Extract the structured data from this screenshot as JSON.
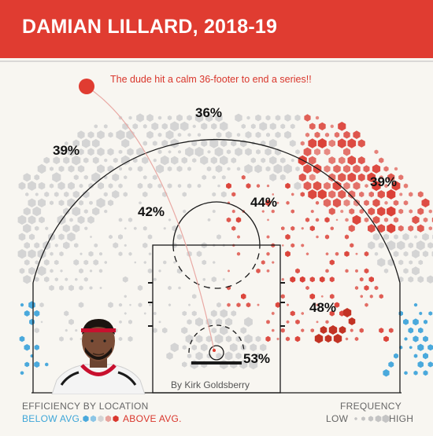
{
  "header": {
    "title": "DAMIAN LILLARD, 2018-19"
  },
  "annotation": "The dude hit a calm 36-footer to end a series!!",
  "credit": "By Kirk Goldsberry",
  "colors": {
    "header": "#e03c31",
    "below_avg": "#4aa9dc",
    "avg": "#d4d4d4",
    "above_avg": "#d9362c"
  },
  "legend": {
    "efficiency_title": "EFFICIENCY BY LOCATION",
    "below_label": "BELOW AVG.",
    "above_label": "ABOVE AVG.",
    "frequency_title": "FREQUENCY",
    "low_label": "LOW",
    "high_label": "HIGH"
  },
  "chart_data": {
    "type": "heatmap",
    "title": "DAMIAN LILLARD, 2018-19",
    "zones": [
      {
        "zone": "left wing three",
        "fg_pct": "39%"
      },
      {
        "zone": "top of key three",
        "fg_pct": "36%"
      },
      {
        "zone": "right wing three",
        "fg_pct": "39%"
      },
      {
        "zone": "left midrange",
        "fg_pct": "42%"
      },
      {
        "zone": "right elbow midrange",
        "fg_pct": "44%"
      },
      {
        "zone": "right baseline midrange",
        "fg_pct": "48%"
      },
      {
        "zone": "restricted area",
        "fg_pct": "53%"
      }
    ],
    "highlight_shot": {
      "distance": "36-footer",
      "made": true
    }
  }
}
